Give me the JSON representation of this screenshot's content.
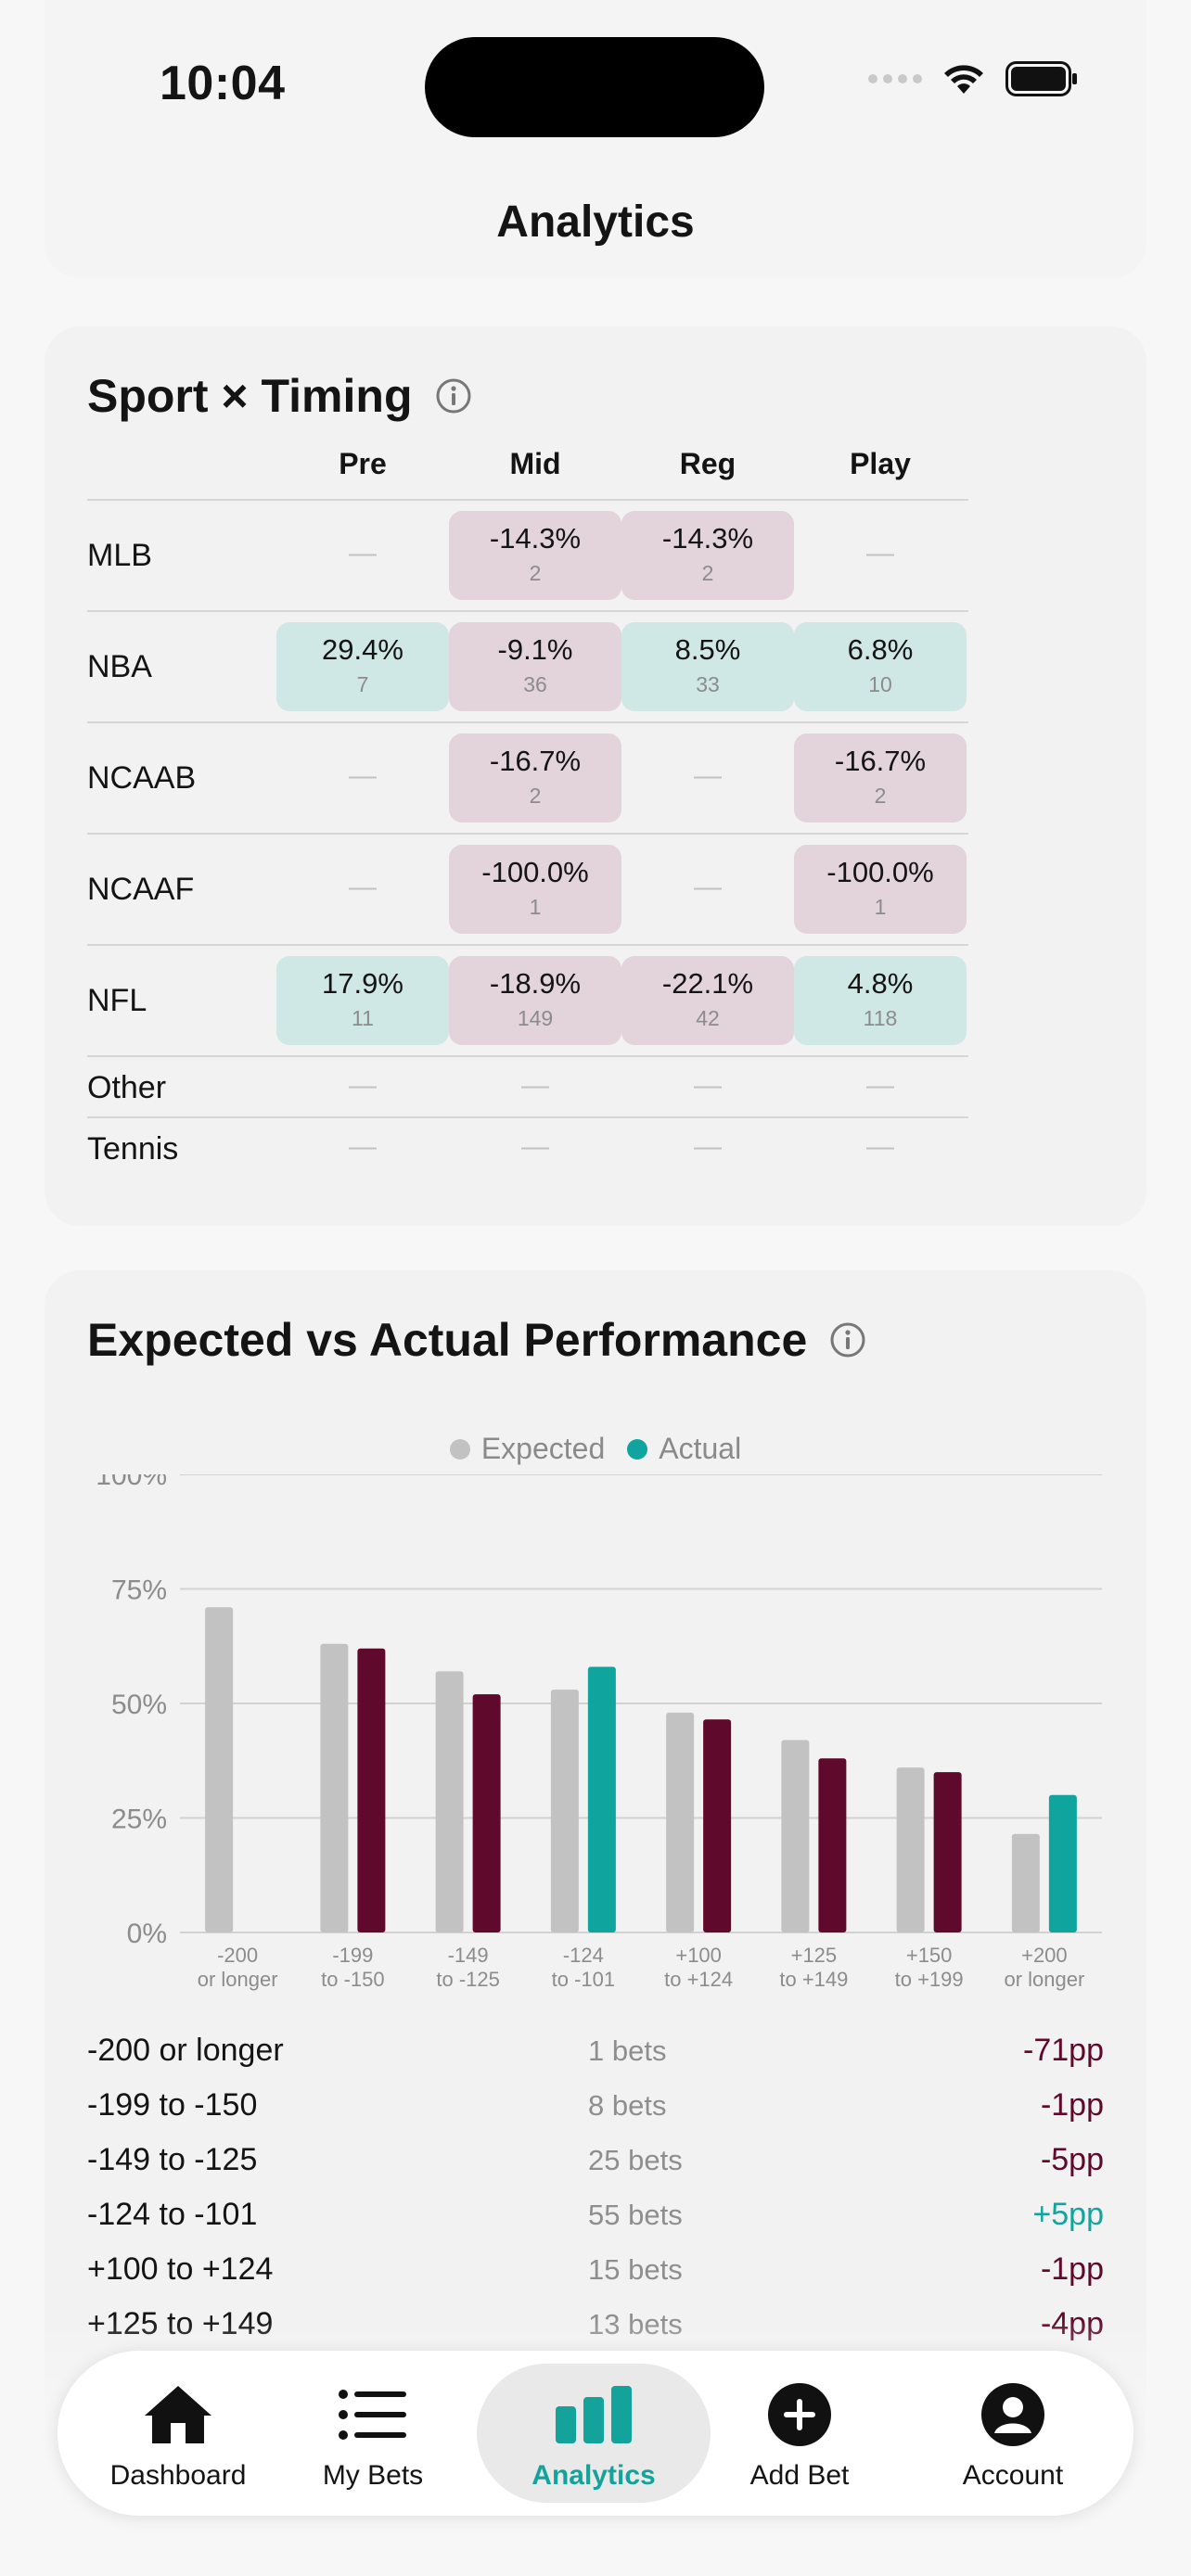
{
  "status_bar": {
    "time": "10:04"
  },
  "header": {
    "title": "Analytics"
  },
  "sport_timing": {
    "title": "Sport × Timing",
    "columns": [
      "Pre",
      "Mid",
      "Reg",
      "Play"
    ],
    "empty": "—",
    "rows": [
      {
        "sport": "MLB",
        "cells": [
          null,
          {
            "pct": "-14.3%",
            "count": "2",
            "tone": "neg"
          },
          {
            "pct": "-14.3%",
            "count": "2",
            "tone": "neg"
          },
          null
        ]
      },
      {
        "sport": "NBA",
        "cells": [
          {
            "pct": "29.4%",
            "count": "7",
            "tone": "pos"
          },
          {
            "pct": "-9.1%",
            "count": "36",
            "tone": "neg"
          },
          {
            "pct": "8.5%",
            "count": "33",
            "tone": "pos"
          },
          {
            "pct": "6.8%",
            "count": "10",
            "tone": "pos"
          }
        ]
      },
      {
        "sport": "NCAAB",
        "cells": [
          null,
          {
            "pct": "-16.7%",
            "count": "2",
            "tone": "neg"
          },
          null,
          {
            "pct": "-16.7%",
            "count": "2",
            "tone": "neg"
          }
        ]
      },
      {
        "sport": "NCAAF",
        "cells": [
          null,
          {
            "pct": "-100.0%",
            "count": "1",
            "tone": "neg"
          },
          null,
          {
            "pct": "-100.0%",
            "count": "1",
            "tone": "neg"
          }
        ]
      },
      {
        "sport": "NFL",
        "cells": [
          {
            "pct": "17.9%",
            "count": "11",
            "tone": "pos"
          },
          {
            "pct": "-18.9%",
            "count": "149",
            "tone": "neg"
          },
          {
            "pct": "-22.1%",
            "count": "42",
            "tone": "neg"
          },
          {
            "pct": "4.8%",
            "count": "118",
            "tone": "pos"
          }
        ]
      },
      {
        "sport": "Other",
        "cells": [
          null,
          null,
          null,
          null
        ]
      },
      {
        "sport": "Tennis",
        "cells": [
          null,
          null,
          null,
          null
        ]
      }
    ]
  },
  "performance": {
    "title": "Expected vs Actual Performance",
    "legend": [
      "Expected",
      "Actual"
    ]
  },
  "chart_data": {
    "type": "bar",
    "categories": [
      [
        "-200",
        "or longer"
      ],
      [
        "-199",
        "to -150"
      ],
      [
        "-149",
        "to -125"
      ],
      [
        "-124",
        "to -101"
      ],
      [
        "+100",
        "to +124"
      ],
      [
        "+125",
        "to +149"
      ],
      [
        "+150",
        "to +199"
      ],
      [
        "+200",
        "or longer"
      ]
    ],
    "series": [
      {
        "name": "Expected",
        "values": [
          71,
          63,
          57,
          53,
          48,
          42,
          36,
          21.5
        ]
      },
      {
        "name": "Actual",
        "values": [
          0,
          62,
          52,
          58,
          46.5,
          38,
          35,
          30
        ]
      }
    ],
    "yticks": [
      "0%",
      "25%",
      "50%",
      "75%",
      "100%"
    ],
    "ylim": [
      0,
      100
    ],
    "grid": true,
    "legend_position": "top-center",
    "colors": {
      "expected": "#c2c2c2",
      "actual_below": "#5f0a2c",
      "actual_above": "#0fa59e"
    }
  },
  "odds_table": [
    {
      "range": "-200 or longer",
      "bets": "1 bets",
      "diff": "-71pp",
      "tone": "neg"
    },
    {
      "range": "-199 to -150",
      "bets": "8 bets",
      "diff": "-1pp",
      "tone": "neg"
    },
    {
      "range": "-149 to -125",
      "bets": "25 bets",
      "diff": "-5pp",
      "tone": "neg"
    },
    {
      "range": "-124 to -101",
      "bets": "55 bets",
      "diff": "+5pp",
      "tone": "pos"
    },
    {
      "range": "+100 to +124",
      "bets": "15 bets",
      "diff": "-1pp",
      "tone": "neg"
    },
    {
      "range": "+125 to +149",
      "bets": "13 bets",
      "diff": "-4pp",
      "tone": "neg"
    }
  ],
  "tabs": [
    {
      "label": "Dashboard",
      "icon": "house-icon"
    },
    {
      "label": "My Bets",
      "icon": "list-icon"
    },
    {
      "label": "Analytics",
      "icon": "bar-chart-icon",
      "active": true
    },
    {
      "label": "Add Bet",
      "icon": "plus-circle-icon"
    },
    {
      "label": "Account",
      "icon": "person-circle-icon"
    }
  ],
  "colors": {
    "accent": "#14a39b",
    "negative": "#5f0a2c",
    "positive_cell": "#cfe7e5",
    "negative_cell": "#e3d3da"
  }
}
